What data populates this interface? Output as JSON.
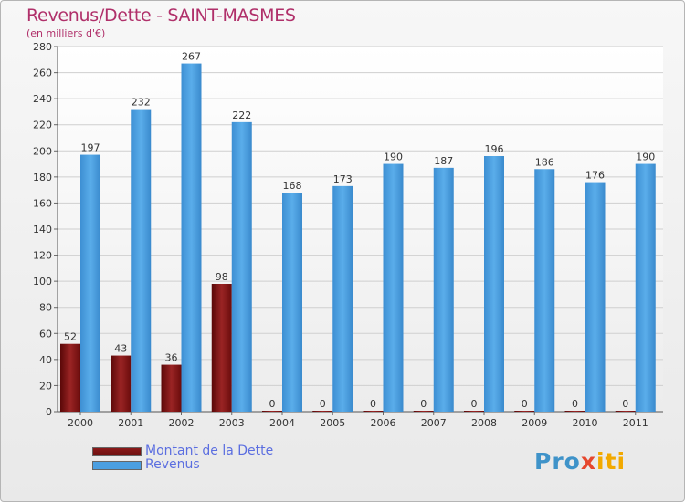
{
  "page": {
    "title": "Revenus/Dette - SAINT-MASMES",
    "subtitle": "(en milliers d'€)"
  },
  "legend": {
    "items": [
      {
        "label": "Montant de la Dette",
        "color": "#6b0f0f"
      },
      {
        "label": "Revenus",
        "color": "#4b9fe1"
      }
    ]
  },
  "logo": {
    "text": "Proxiti",
    "parts": [
      "Pro",
      "x",
      "iti"
    ]
  },
  "chart_data": {
    "type": "bar",
    "title": "Revenus/Dette - SAINT-MASMES",
    "ylabel": "(en milliers d'€)",
    "xlabel": "",
    "categories": [
      "2000",
      "2001",
      "2002",
      "2003",
      "2004",
      "2005",
      "2006",
      "2007",
      "2008",
      "2009",
      "2010",
      "2011"
    ],
    "series": [
      {
        "name": "Montant de la Dette",
        "color": "#8a1a1a",
        "values": [
          52,
          43,
          36,
          98,
          0,
          0,
          0,
          0,
          0,
          0,
          0,
          0
        ]
      },
      {
        "name": "Revenus",
        "color": "#4b9fe1",
        "values": [
          197,
          232,
          267,
          222,
          168,
          173,
          190,
          187,
          196,
          186,
          176,
          190
        ]
      }
    ],
    "ylim": [
      0,
      280
    ],
    "yticks": [
      0,
      20,
      40,
      60,
      80,
      100,
      120,
      140,
      160,
      180,
      200,
      220,
      240,
      260,
      280
    ],
    "grid": true,
    "legend": "bottom-left",
    "data_labels": true
  }
}
